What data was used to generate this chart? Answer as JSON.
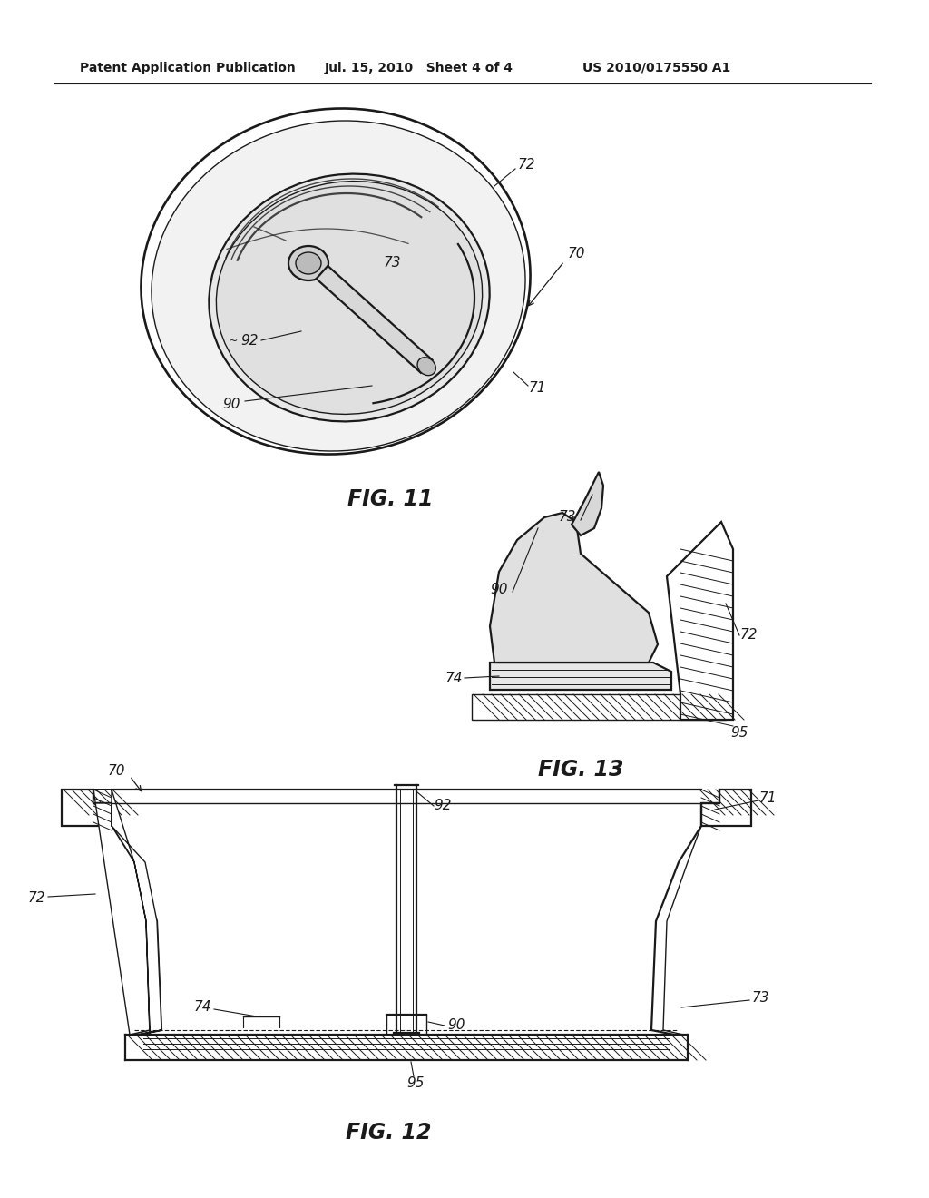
{
  "bg_color": "#ffffff",
  "line_color": "#1a1a1a",
  "header_left": "Patent Application Publication",
  "header_mid": "Jul. 15, 2010   Sheet 4 of 4",
  "header_right": "US 2010/0175550 A1",
  "fig11_label": "FIG. 11",
  "fig12_label": "FIG. 12",
  "fig13_label": "FIG. 13",
  "font_header": 10,
  "font_fig": 17,
  "font_ref": 11
}
